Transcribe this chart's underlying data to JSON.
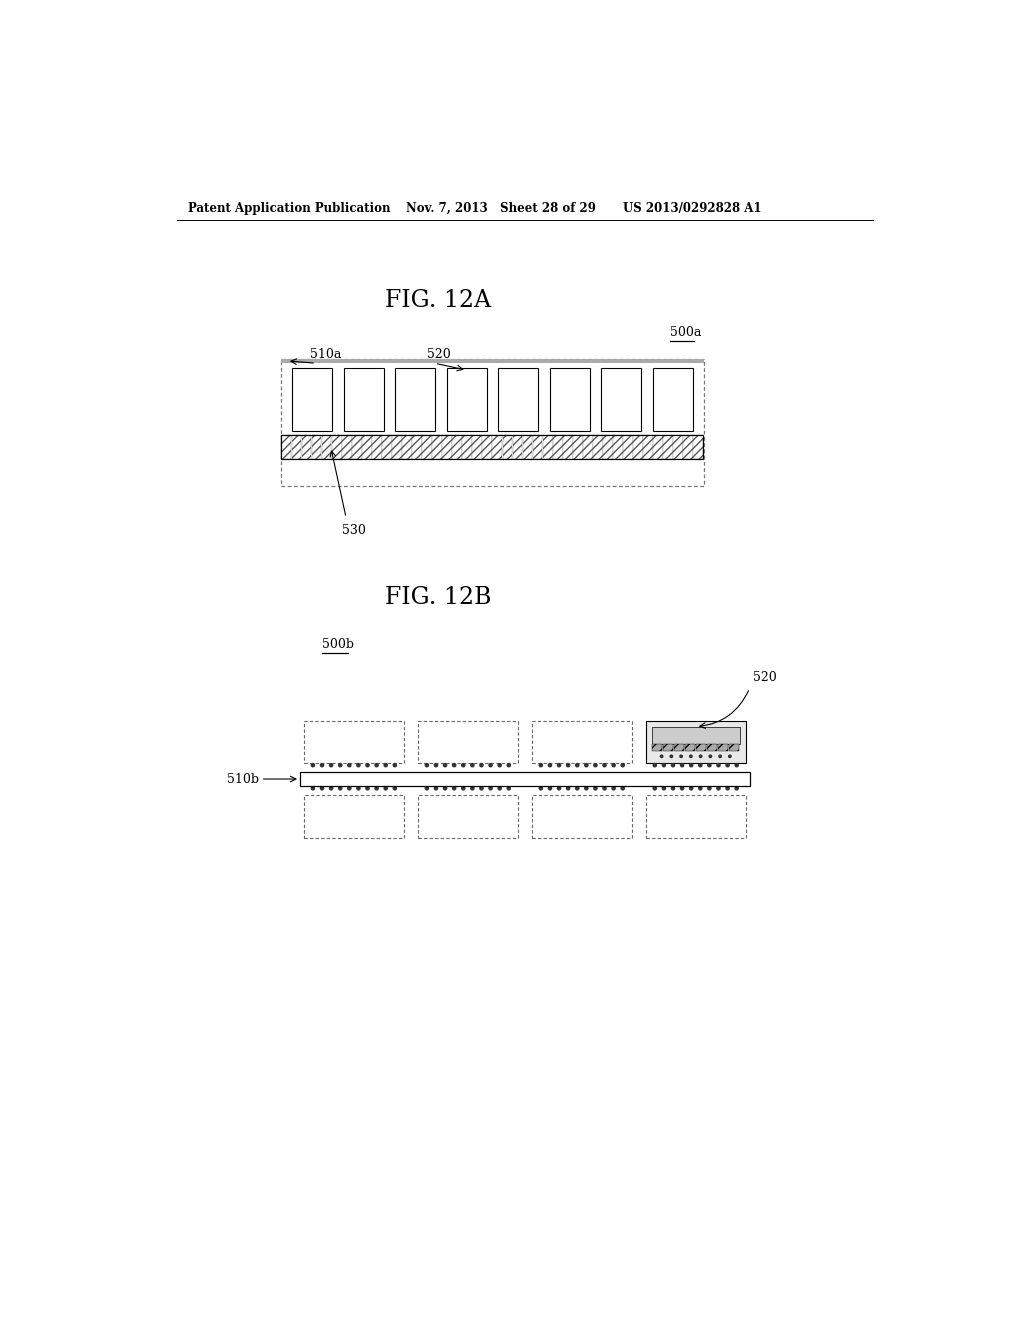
{
  "bg_color": "#ffffff",
  "header_left": "Patent Application Publication",
  "header_mid": "Nov. 7, 2013   Sheet 28 of 29",
  "header_right": "US 2013/0292828 A1",
  "fig12a_title": "FIG. 12A",
  "fig12b_title": "FIG. 12B",
  "label_500a": "500a",
  "label_510a": "510a",
  "label_520a": "520",
  "label_530": "530",
  "label_500b": "500b",
  "label_510b": "510b",
  "label_520b": "520"
}
